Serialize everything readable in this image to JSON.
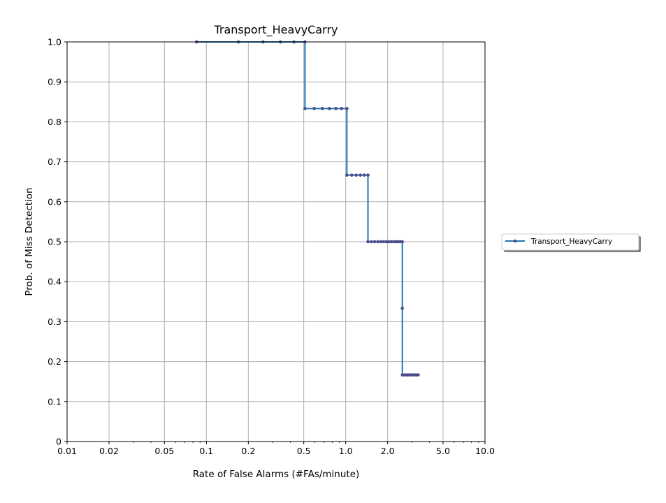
{
  "chart_data": {
    "type": "line",
    "title": "Transport_HeavyCarry",
    "xlabel": "Rate of False Alarms (#FAs/minute)",
    "ylabel": "Prob. of Miss Detection",
    "xscale": "log",
    "xlim": [
      0.01,
      10.0
    ],
    "ylim": [
      0,
      1.0
    ],
    "xticks": [
      0.01,
      0.02,
      0.05,
      0.1,
      0.2,
      0.5,
      1.0,
      2.0,
      5.0,
      10.0
    ],
    "xtick_labels": [
      "0.01",
      "0.02",
      "0.05",
      "0.1",
      "0.2",
      "0.5",
      "1.0",
      "2.0",
      "5.0",
      "10.0"
    ],
    "yticks": [
      0,
      0.1,
      0.2,
      0.3,
      0.4,
      0.5,
      0.6,
      0.7,
      0.8,
      0.9,
      1.0
    ],
    "ytick_labels": [
      "0",
      "0.1",
      "0.2",
      "0.3",
      "0.4",
      "0.5",
      "0.6",
      "0.7",
      "0.8",
      "0.9",
      "1.0"
    ],
    "grid": true,
    "legend_position": "outside-right",
    "series": [
      {
        "name": "Transport_HeavyCarry",
        "color": "#1f77b4",
        "marker_color": "#4c4c8c",
        "x": [
          0.085,
          0.17,
          0.255,
          0.34,
          0.425,
          0.51,
          0.51,
          0.595,
          0.68,
          0.765,
          0.85,
          0.935,
          1.02,
          1.02,
          1.105,
          1.19,
          1.275,
          1.36,
          1.445,
          1.445,
          1.53,
          1.615,
          1.7,
          1.785,
          1.87,
          1.955,
          2.04,
          2.125,
          2.21,
          2.295,
          2.38,
          2.465,
          2.55,
          2.55,
          2.55,
          2.635,
          2.72,
          2.805,
          2.89,
          2.975,
          3.06,
          3.145,
          3.23,
          3.315
        ],
        "y": [
          1.0,
          1.0,
          1.0,
          1.0,
          1.0,
          1.0,
          0.8333,
          0.8333,
          0.8333,
          0.8333,
          0.8333,
          0.8333,
          0.8333,
          0.6667,
          0.6667,
          0.6667,
          0.6667,
          0.6667,
          0.6667,
          0.5,
          0.5,
          0.5,
          0.5,
          0.5,
          0.5,
          0.5,
          0.5,
          0.5,
          0.5,
          0.5,
          0.5,
          0.5,
          0.5,
          0.3333,
          0.1667,
          0.1667,
          0.1667,
          0.1667,
          0.1667,
          0.1667,
          0.1667,
          0.1667,
          0.1667,
          0.1667
        ]
      }
    ]
  }
}
